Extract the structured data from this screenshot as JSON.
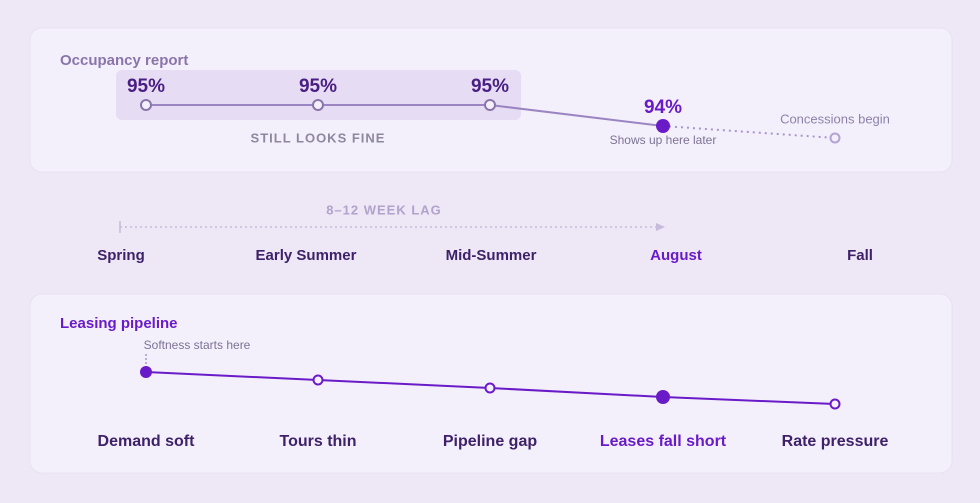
{
  "occupancy": {
    "title": "Occupancy report",
    "points": [
      "95%",
      "95%",
      "95%",
      "94%"
    ],
    "band_label": "STILL LOOKS FINE",
    "later_note": "Shows up here later",
    "concessions_label": "Concessions begin"
  },
  "timeline": {
    "lag_label": "8–12 WEEK LAG",
    "periods": [
      "Spring",
      "Early Summer",
      "Mid-Summer",
      "August",
      "Fall"
    ]
  },
  "pipeline": {
    "title": "Leasing pipeline",
    "note": "Softness starts here",
    "stages": [
      "Demand soft",
      "Tours thin",
      "Pipeline gap",
      "Leases fall short",
      "Rate pressure"
    ]
  }
}
